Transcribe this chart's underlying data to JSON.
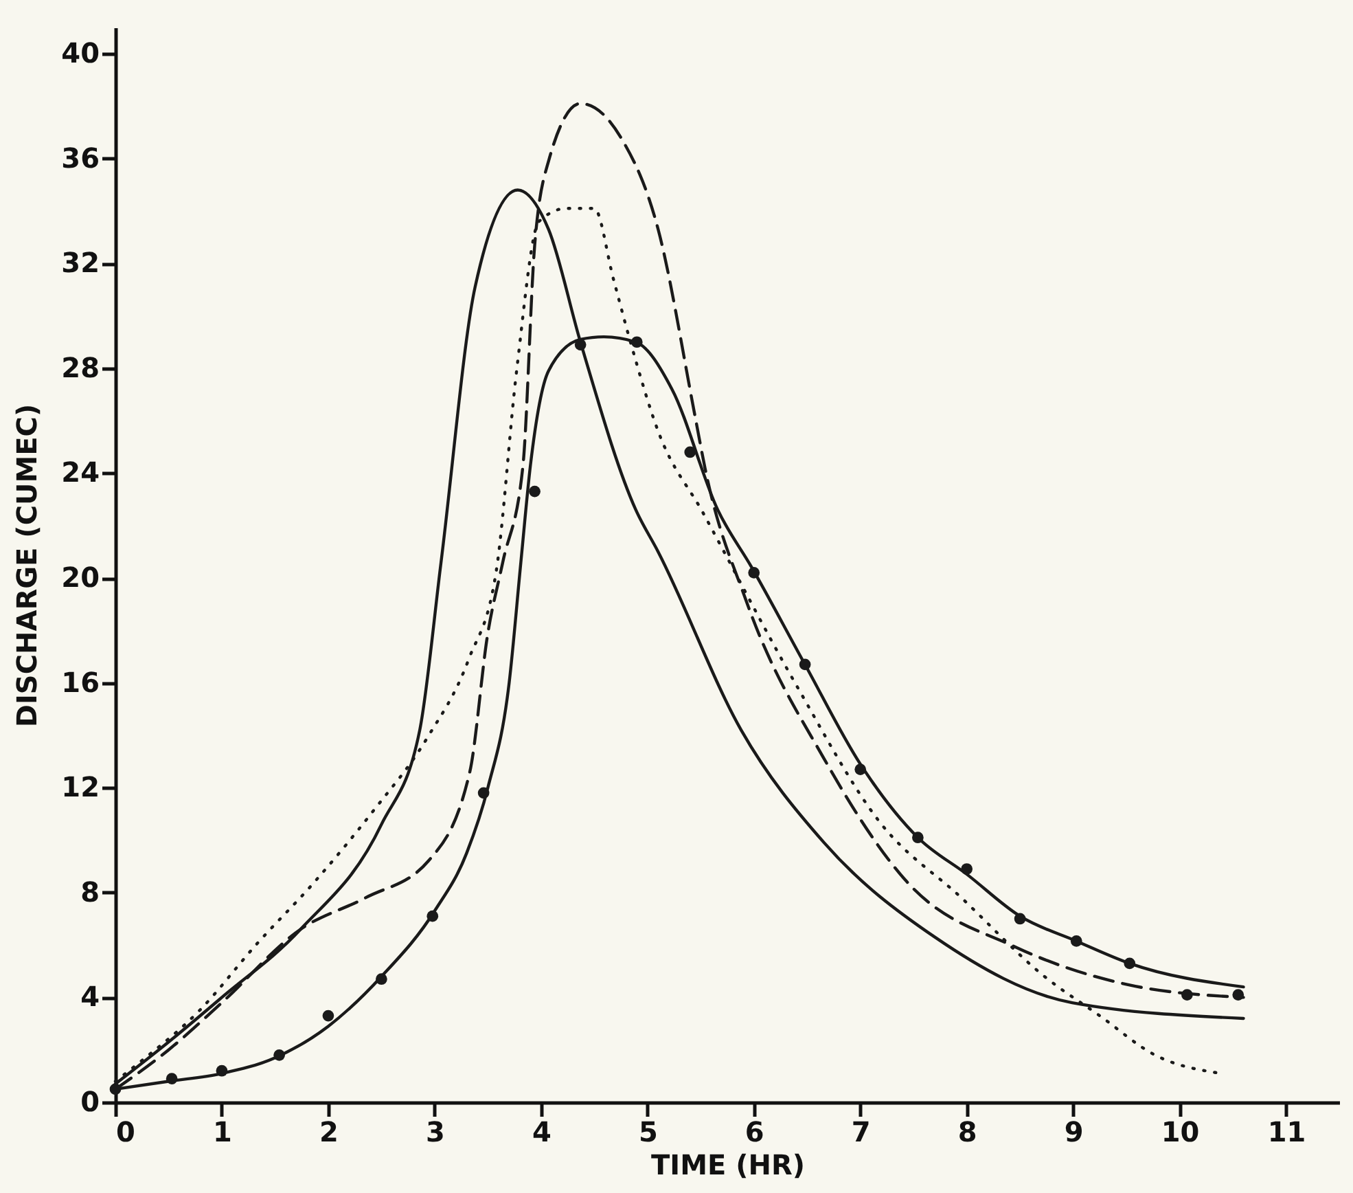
{
  "chart_data": {
    "type": "line",
    "xlabel": "TIME (HR)",
    "ylabel": "DISCHARGE (CUMEC)",
    "xlim": [
      0,
      11.5
    ],
    "ylim": [
      0,
      41
    ],
    "xticks": [
      0,
      1,
      2,
      3,
      4,
      5,
      6,
      7,
      8,
      9,
      10,
      11
    ],
    "yticks": [
      0,
      4,
      8,
      12,
      16,
      20,
      24,
      28,
      32,
      36,
      40
    ],
    "grid": false,
    "series": [
      {
        "line_style": "solid",
        "color": "#1a1a1a",
        "x": [
          0,
          0.5,
          1,
          1.74,
          2.5,
          2.86,
          3.06,
          3.38,
          3.78,
          4.07,
          4.37,
          4.89,
          5.1,
          5.88,
          6.66,
          7.7,
          8.99,
          10.6
        ],
        "values": [
          0.7,
          2.3,
          4.0,
          6.6,
          10.6,
          14.2,
          20.6,
          31.1,
          34.8,
          33.3,
          29.0,
          22.6,
          21.0,
          14.2,
          9.9,
          6.3,
          3.8,
          3.2
        ]
      },
      {
        "line_style": "dashed",
        "color": "#1a1a1a",
        "x": [
          0,
          0.5,
          1,
          1.74,
          2.35,
          2.94,
          3.33,
          3.5,
          3.64,
          3.83,
          3.94,
          4.07,
          4.37,
          4.75,
          5.1,
          5.45,
          5.54,
          5.93,
          6.66,
          7.44,
          8.47,
          9.5,
          10.6
        ],
        "values": [
          0.5,
          2.0,
          3.8,
          6.6,
          7.8,
          9.2,
          12.6,
          17.9,
          20.6,
          24.3,
          32.7,
          35.9,
          38.1,
          36.8,
          33.3,
          26.1,
          24.2,
          19.1,
          13.1,
          8.4,
          5.9,
          4.5,
          4.0
        ]
      },
      {
        "line_style": "dotted",
        "color": "#1a1a1a",
        "x": [
          0,
          0.22,
          0.79,
          1.32,
          1.87,
          2.42,
          2.93,
          3.32,
          3.58,
          3.77,
          3.98,
          4.24,
          4.5,
          4.68,
          4.84,
          5.1,
          5.52,
          6.4,
          7.18,
          7.95,
          8.73,
          9.25,
          9.77,
          10.39
        ],
        "values": [
          0.8,
          1.5,
          3.5,
          6.0,
          8.4,
          11.1,
          13.9,
          16.9,
          20.3,
          27.9,
          33.6,
          34.1,
          34.1,
          31.4,
          29.0,
          25.6,
          22.5,
          15.9,
          10.7,
          7.8,
          4.8,
          3.3,
          1.8,
          1.1
        ]
      },
      {
        "line_style": "solid",
        "color": "#1a1a1a",
        "x": [
          0,
          0.5,
          1,
          1.5,
          2,
          2.5,
          3,
          3.3,
          3.5,
          3.7,
          3.81,
          3.9,
          4.07,
          4.37,
          4.59,
          4.89,
          5.23,
          5.66,
          5.98,
          6.48,
          7.0,
          7.54,
          8.0,
          8.5,
          9.03,
          9.53,
          10.6
        ],
        "values": [
          0.5,
          0.8,
          1.1,
          1.7,
          2.9,
          4.8,
          7.3,
          9.5,
          12.0,
          16.0,
          20.6,
          24.3,
          27.9,
          29.1,
          29.2,
          29.0,
          27.2,
          22.6,
          20.4,
          16.7,
          12.9,
          10.1,
          8.7,
          7.1,
          6.15,
          5.3,
          4.4
        ]
      },
      {
        "type": "scatter",
        "marker": "circle",
        "color": "#1a1a1a",
        "x": [
          0,
          0.53,
          1.0,
          1.54,
          2.0,
          2.5,
          2.98,
          3.46,
          3.94,
          4.37,
          4.9,
          5.4,
          6.0,
          6.48,
          7.0,
          7.54,
          8.0,
          8.5,
          9.03,
          9.53,
          10.07,
          10.55
        ],
        "values": [
          0.5,
          0.9,
          1.2,
          1.8,
          3.3,
          4.7,
          7.1,
          11.8,
          23.3,
          28.9,
          29.0,
          24.8,
          20.2,
          16.7,
          12.7,
          10.1,
          8.9,
          7.0,
          6.15,
          5.3,
          4.1,
          4.1
        ]
      }
    ]
  }
}
